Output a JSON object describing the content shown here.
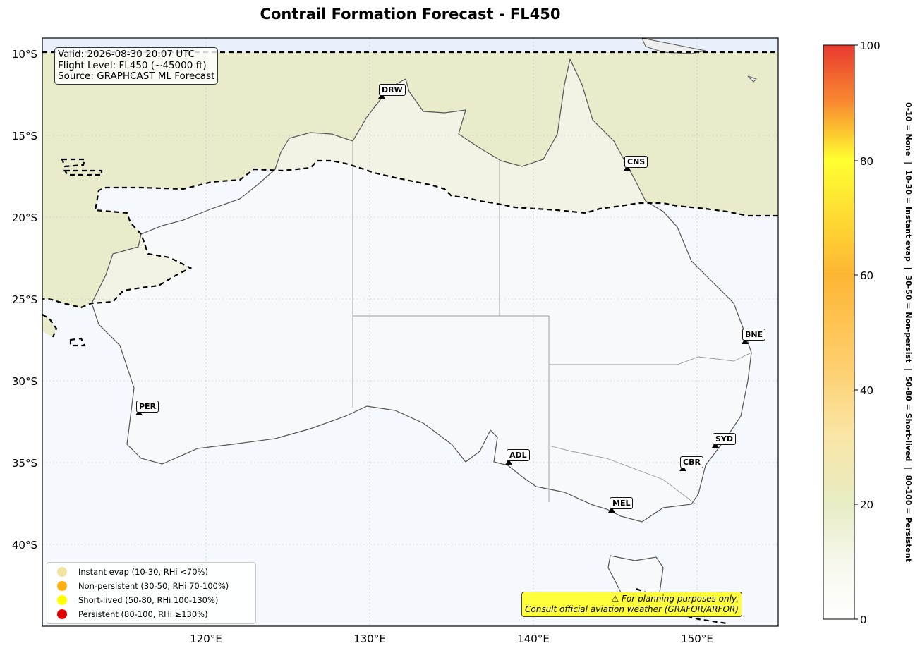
{
  "title": "Contrail Formation Forecast - FL450",
  "info": {
    "valid": "Valid: 2026-08-30 20:07 UTC",
    "flight_level": "Flight Level: FL450 (~45000 ft)",
    "source": "Source: GRAPHCAST ML Forecast"
  },
  "lat_ticks": [
    "10°S",
    "15°S",
    "20°S",
    "25°S",
    "30°S",
    "35°S",
    "40°S"
  ],
  "lon_ticks": [
    "120°E",
    "130°E",
    "140°E",
    "150°E"
  ],
  "cities": [
    {
      "code": "DRW"
    },
    {
      "code": "CNS"
    },
    {
      "code": "BNE"
    },
    {
      "code": "PER"
    },
    {
      "code": "SYD"
    },
    {
      "code": "ADL"
    },
    {
      "code": "CBR"
    },
    {
      "code": "MEL"
    }
  ],
  "legend": [
    {
      "label": "Instant evap (10-30, RHi <70%)",
      "color": "#f0e4a0"
    },
    {
      "label": "Non-persistent (30-50, RHi 70-100%)",
      "color": "#ffb014"
    },
    {
      "label": "Short-lived (50-80, RHi 100-130%)",
      "color": "#ffff00"
    },
    {
      "label": "Persistent (80-100, RHi ≥130%)",
      "color": "#e00000"
    }
  ],
  "warning": {
    "line1": "⚠ For planning purposes only.",
    "line2": "Consult official aviation weather (GRAFOR/ARFOR)"
  },
  "colorbar": {
    "ticks": [
      "0",
      "20",
      "40",
      "60",
      "80",
      "100"
    ],
    "label": "0-10 = None  |  10-30 = Instant evap  |  30-50 = Non-persist  |  50-80 = Short-lived  |  80-100 = Persistent"
  },
  "colors": {
    "ocean": "#f5f9fd",
    "land": "#f8f8f8",
    "tropical_band": "#e9ebcb",
    "coast": "#555555"
  }
}
